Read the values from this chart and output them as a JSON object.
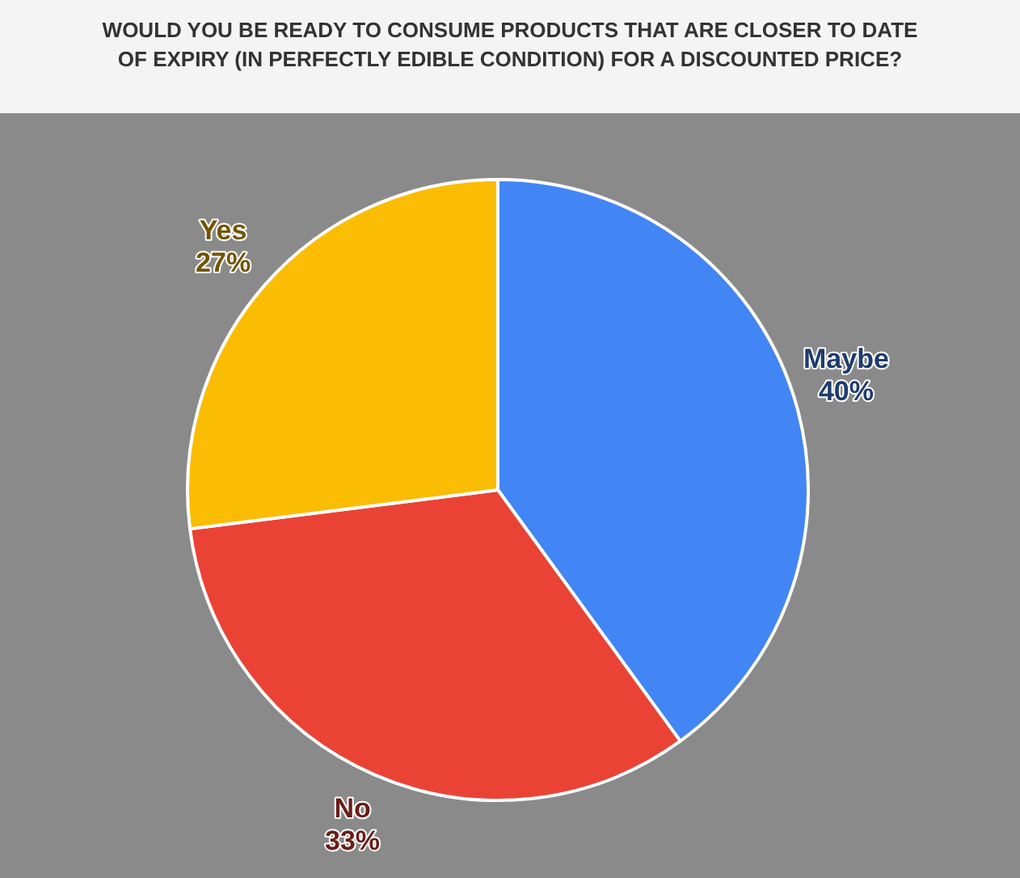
{
  "chart_data": {
    "type": "pie",
    "title": "WOULD YOU BE READY TO CONSUME PRODUCTS THAT ARE CLOSER TO DATE OF EXPIRY (IN PERFECTLY EDIBLE CONDITION) FOR A DISCOUNTED PRICE?",
    "categories": [
      "Maybe",
      "No",
      "Yes"
    ],
    "values": [
      40,
      33,
      27
    ],
    "colors": [
      "#4285f4",
      "#ea4335",
      "#fbbc04"
    ],
    "value_labels": [
      "40%",
      "33%",
      "27%"
    ],
    "legend": false
  }
}
